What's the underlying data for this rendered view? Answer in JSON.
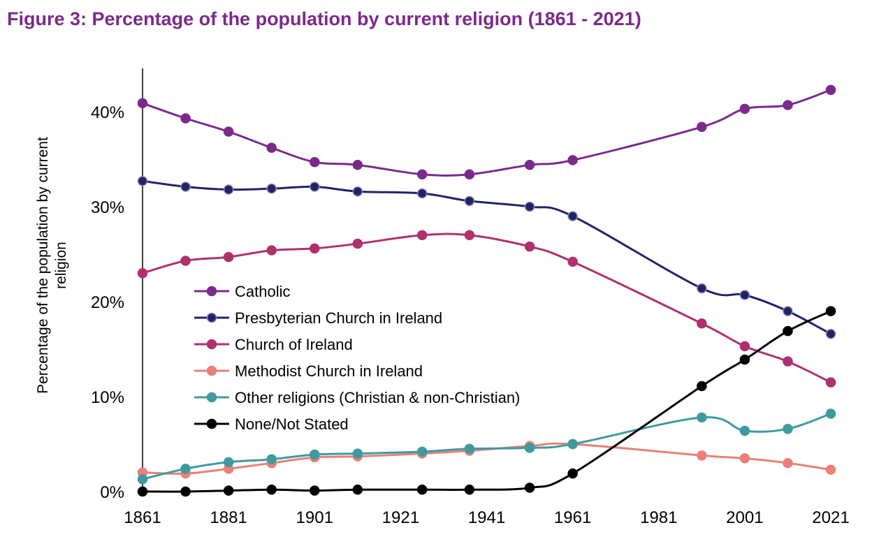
{
  "figure_title": "Figure 3: Percentage of the population by current religion (1861 - 2021)",
  "chart_data": {
    "type": "line",
    "ylabel_line1": "Percentage of the population by current",
    "ylabel_line2": "religion",
    "xlabel": "",
    "xlim": [
      1861,
      2021
    ],
    "ylim": [
      0,
      45
    ],
    "x_ticks": [
      1861,
      1881,
      1901,
      1921,
      1941,
      1961,
      1981,
      2001,
      2021
    ],
    "x_tick_labels": [
      "1861",
      "1881",
      "1901",
      "1921",
      "1941",
      "1961",
      "1981",
      "2001",
      "2021"
    ],
    "y_ticks": [
      0,
      10,
      20,
      30,
      40
    ],
    "y_tick_labels": [
      "0%",
      "10%",
      "20%",
      "30%",
      "40%"
    ],
    "grid": false,
    "legend_position": "center-left",
    "smooth_lines": true,
    "series": [
      {
        "name": "Catholic",
        "color": "#7b2a8c",
        "x": [
          1861,
          1871,
          1881,
          1891,
          1901,
          1911,
          1926,
          1937,
          1951,
          1961,
          1991,
          2001,
          2011,
          2021
        ],
        "values": [
          40.9,
          39.3,
          37.9,
          36.2,
          34.7,
          34.4,
          33.4,
          33.4,
          34.4,
          34.9,
          38.4,
          40.3,
          40.7,
          42.3
        ]
      },
      {
        "name": "Presbyterian Church in Ireland",
        "color": "#22226a",
        "x": [
          1861,
          1871,
          1881,
          1891,
          1901,
          1911,
          1926,
          1937,
          1951,
          1961,
          1991,
          2001,
          2011,
          2021
        ],
        "values": [
          32.7,
          32.1,
          31.8,
          31.9,
          32.1,
          31.6,
          31.4,
          30.6,
          30.0,
          29.0,
          21.4,
          20.7,
          19.0,
          16.6
        ]
      },
      {
        "name": "Church of Ireland",
        "color": "#b0306f",
        "x": [
          1861,
          1871,
          1881,
          1891,
          1901,
          1911,
          1926,
          1937,
          1951,
          1961,
          1991,
          2001,
          2011,
          2021
        ],
        "values": [
          23.0,
          24.3,
          24.7,
          25.4,
          25.6,
          26.1,
          27.0,
          27.0,
          25.8,
          24.2,
          17.7,
          15.3,
          13.7,
          11.5
        ]
      },
      {
        "name": "Methodist Church in Ireland",
        "color": "#ea8078",
        "x": [
          1861,
          1871,
          1881,
          1891,
          1901,
          1911,
          1926,
          1937,
          1951,
          1961,
          1991,
          2001,
          2011,
          2021
        ],
        "values": [
          2.0,
          1.9,
          2.4,
          3.0,
          3.6,
          3.7,
          4.0,
          4.3,
          4.8,
          5.0,
          3.8,
          3.5,
          3.0,
          2.3
        ]
      },
      {
        "name": "Other religions (Christian & non-Christian)",
        "color": "#3f9aa0",
        "x": [
          1861,
          1871,
          1881,
          1891,
          1901,
          1911,
          1926,
          1937,
          1951,
          1961,
          1991,
          2001,
          2011,
          2021
        ],
        "values": [
          1.3,
          2.4,
          3.1,
          3.4,
          3.9,
          4.0,
          4.2,
          4.5,
          4.6,
          5.0,
          7.8,
          6.4,
          6.6,
          8.2
        ]
      },
      {
        "name": "None/Not Stated",
        "color": "#000000",
        "x": [
          1861,
          1871,
          1881,
          1891,
          1901,
          1911,
          1926,
          1937,
          1951,
          1961,
          1991,
          2001,
          2011,
          2021
        ],
        "values": [
          0.0,
          0.0,
          0.1,
          0.2,
          0.1,
          0.2,
          0.2,
          0.2,
          0.4,
          1.9,
          11.1,
          13.9,
          16.9,
          19.0
        ]
      }
    ]
  }
}
